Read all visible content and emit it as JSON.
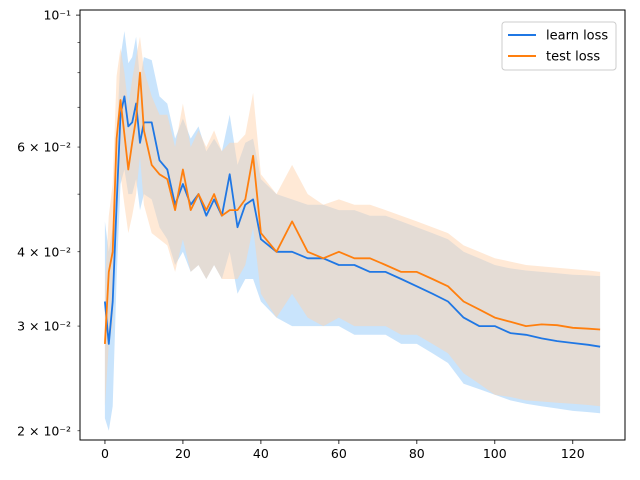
{
  "chart_data": {
    "type": "line",
    "title": "",
    "xlabel": "",
    "ylabel": "",
    "xlim": [
      -6.4,
      133.4
    ],
    "ylim": [
      0.0193,
      0.102
    ],
    "yscale": "log",
    "grid": false,
    "legend_position": "top-right",
    "x_ticks": [
      0,
      20,
      40,
      60,
      80,
      100,
      120
    ],
    "x_tick_labels": [
      "0",
      "20",
      "40",
      "60",
      "80",
      "100",
      "120"
    ],
    "y_ticks_major": [
      0.1
    ],
    "y_tick_labels_major": [
      "10⁻¹"
    ],
    "y_ticks_minor": [
      0.02,
      0.03,
      0.04,
      0.05,
      0.06,
      0.07,
      0.08,
      0.09
    ],
    "y_tick_labels_minor": [
      "2×10⁻²",
      "3×10⁻²",
      "4×10⁻²",
      "",
      "6×10⁻²",
      "",
      "",
      ""
    ],
    "series": [
      {
        "name": "learn loss",
        "color": "#1f77e4",
        "band_color": "#9ccdfa",
        "x": [
          0,
          1,
          2,
          3,
          4,
          5,
          6,
          7,
          8,
          9,
          10,
          12,
          14,
          16,
          18,
          20,
          22,
          24,
          26,
          28,
          30,
          32,
          34,
          36,
          38,
          40,
          44,
          48,
          52,
          56,
          60,
          64,
          68,
          72,
          76,
          80,
          84,
          88,
          92,
          96,
          100,
          104,
          108,
          112,
          116,
          120,
          124,
          127
        ],
        "values": [
          0.033,
          0.028,
          0.033,
          0.048,
          0.068,
          0.073,
          0.065,
          0.066,
          0.071,
          0.061,
          0.066,
          0.066,
          0.057,
          0.055,
          0.048,
          0.052,
          0.048,
          0.05,
          0.046,
          0.049,
          0.046,
          0.054,
          0.044,
          0.048,
          0.049,
          0.042,
          0.04,
          0.04,
          0.039,
          0.039,
          0.038,
          0.038,
          0.037,
          0.037,
          0.036,
          0.035,
          0.034,
          0.033,
          0.031,
          0.03,
          0.03,
          0.0292,
          0.029,
          0.0286,
          0.0283,
          0.0281,
          0.0279,
          0.0277
        ],
        "lower": [
          0.021,
          0.02,
          0.022,
          0.036,
          0.052,
          0.055,
          0.05,
          0.05,
          0.053,
          0.047,
          0.05,
          0.049,
          0.044,
          0.042,
          0.038,
          0.04,
          0.037,
          0.038,
          0.036,
          0.038,
          0.036,
          0.04,
          0.034,
          0.036,
          0.036,
          0.033,
          0.031,
          0.03,
          0.03,
          0.03,
          0.03,
          0.029,
          0.029,
          0.029,
          0.028,
          0.028,
          0.027,
          0.026,
          0.024,
          0.0235,
          0.023,
          0.0225,
          0.0222,
          0.022,
          0.0218,
          0.0216,
          0.0215,
          0.0214
        ],
        "upper": [
          0.045,
          0.04,
          0.044,
          0.062,
          0.085,
          0.094,
          0.083,
          0.085,
          0.092,
          0.078,
          0.085,
          0.084,
          0.073,
          0.071,
          0.062,
          0.067,
          0.062,
          0.065,
          0.059,
          0.062,
          0.059,
          0.068,
          0.056,
          0.061,
          0.062,
          0.053,
          0.05,
          0.049,
          0.048,
          0.048,
          0.047,
          0.047,
          0.046,
          0.046,
          0.045,
          0.044,
          0.043,
          0.042,
          0.04,
          0.039,
          0.038,
          0.0375,
          0.0372,
          0.037,
          0.0368,
          0.0366,
          0.0365,
          0.0364
        ]
      },
      {
        "name": "test loss",
        "color": "#ff7f0e",
        "band_color": "#ffd3ad",
        "x": [
          0,
          1,
          2,
          3,
          4,
          5,
          6,
          7,
          8,
          9,
          10,
          12,
          14,
          16,
          18,
          20,
          22,
          24,
          26,
          28,
          30,
          32,
          34,
          36,
          38,
          40,
          44,
          48,
          52,
          56,
          60,
          64,
          68,
          72,
          76,
          80,
          84,
          88,
          92,
          96,
          100,
          104,
          108,
          112,
          116,
          120,
          124,
          127
        ],
        "values": [
          0.028,
          0.037,
          0.04,
          0.062,
          0.072,
          0.063,
          0.055,
          0.061,
          0.067,
          0.08,
          0.064,
          0.056,
          0.054,
          0.053,
          0.047,
          0.055,
          0.047,
          0.05,
          0.047,
          0.05,
          0.046,
          0.047,
          0.047,
          0.049,
          0.058,
          0.043,
          0.04,
          0.045,
          0.04,
          0.039,
          0.04,
          0.039,
          0.039,
          0.038,
          0.037,
          0.037,
          0.036,
          0.035,
          0.033,
          0.032,
          0.031,
          0.0305,
          0.03,
          0.0302,
          0.0301,
          0.0298,
          0.0297,
          0.0296
        ],
        "lower": [
          0.022,
          0.028,
          0.03,
          0.046,
          0.054,
          0.048,
          0.043,
          0.046,
          0.05,
          0.058,
          0.048,
          0.043,
          0.042,
          0.041,
          0.037,
          0.042,
          0.037,
          0.038,
          0.036,
          0.038,
          0.036,
          0.036,
          0.036,
          0.038,
          0.044,
          0.034,
          0.031,
          0.034,
          0.031,
          0.03,
          0.031,
          0.03,
          0.03,
          0.03,
          0.029,
          0.029,
          0.028,
          0.027,
          0.025,
          0.024,
          0.023,
          0.0228,
          0.0225,
          0.0224,
          0.0223,
          0.0222,
          0.0221,
          0.022
        ],
        "upper": [
          0.035,
          0.046,
          0.052,
          0.079,
          0.088,
          0.08,
          0.07,
          0.078,
          0.085,
          0.092,
          0.081,
          0.073,
          0.068,
          0.068,
          0.06,
          0.071,
          0.06,
          0.064,
          0.06,
          0.064,
          0.059,
          0.061,
          0.061,
          0.063,
          0.074,
          0.054,
          0.05,
          0.056,
          0.05,
          0.048,
          0.049,
          0.048,
          0.048,
          0.047,
          0.046,
          0.045,
          0.044,
          0.043,
          0.041,
          0.04,
          0.039,
          0.0385,
          0.038,
          0.0378,
          0.0376,
          0.0374,
          0.0372,
          0.037
        ]
      }
    ]
  }
}
